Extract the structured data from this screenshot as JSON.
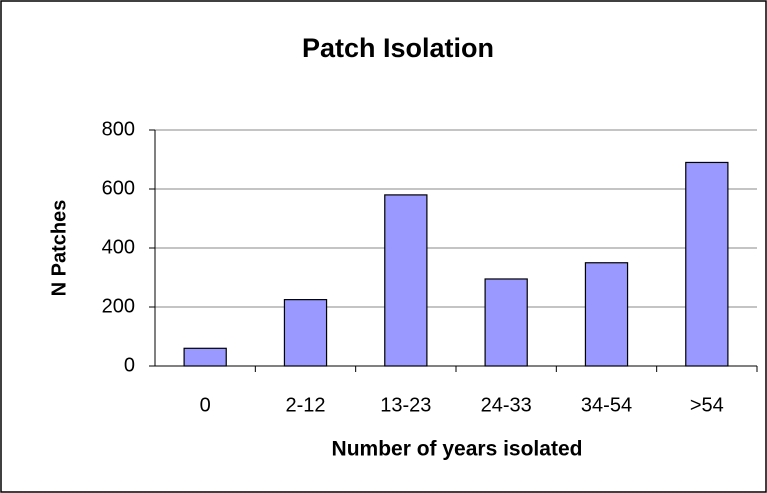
{
  "chart_data": {
    "type": "bar",
    "title": "Patch Isolation",
    "x_label": "Number of years isolated",
    "y_label": "N Patches",
    "categories": [
      "0",
      "2-12",
      "13-23",
      "24-33",
      "34-54",
      ">54"
    ],
    "values": [
      60,
      225,
      580,
      295,
      350,
      690
    ],
    "color": "#9999ff",
    "ylim": [
      0,
      800
    ],
    "yticks": [
      0,
      200,
      400,
      600,
      800
    ],
    "grid": true
  }
}
